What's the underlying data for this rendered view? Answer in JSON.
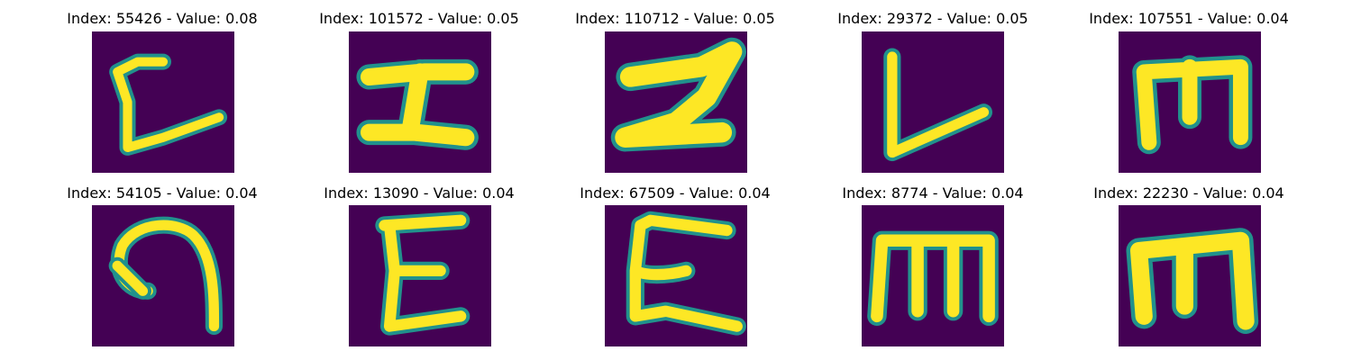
{
  "colors": {
    "background": "#440154",
    "edge": "#21918c",
    "stroke": "#fde725"
  },
  "panels": [
    {
      "title": "Index: 55426 - Value: 0.08",
      "index": 55426,
      "value": 0.08
    },
    {
      "title": "Index: 101572 - Value: 0.05",
      "index": 101572,
      "value": 0.05
    },
    {
      "title": "Index: 110712 - Value: 0.05",
      "index": 110712,
      "value": 0.05
    },
    {
      "title": "Index: 29372 - Value: 0.05",
      "index": 29372,
      "value": 0.05
    },
    {
      "title": "Index: 107551 - Value: 0.04",
      "index": 107551,
      "value": 0.04
    },
    {
      "title": "Index: 54105 - Value: 0.04",
      "index": 54105,
      "value": 0.04
    },
    {
      "title": "Index: 13090 - Value: 0.04",
      "index": 13090,
      "value": 0.04
    },
    {
      "title": "Index: 67509 - Value: 0.04",
      "index": 67509,
      "value": 0.04
    },
    {
      "title": "Index: 8774 - Value: 0.04",
      "index": 8774,
      "value": 0.04
    },
    {
      "title": "Index: 22230 - Value: 0.04",
      "index": 22230,
      "value": 0.04
    }
  ]
}
